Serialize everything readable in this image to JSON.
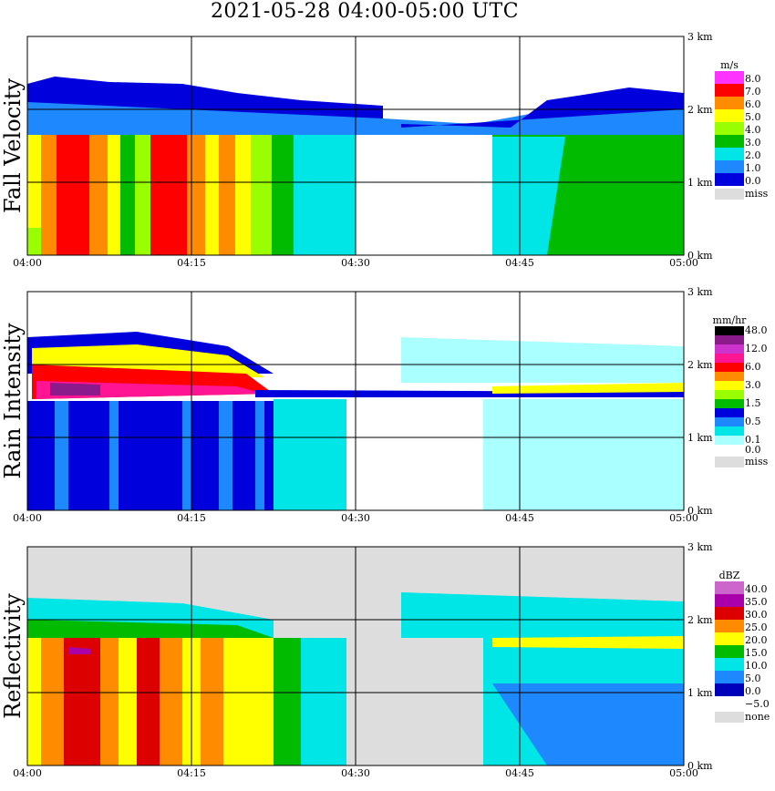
{
  "title": "2021-05-28   04:00-05:00 UTC",
  "chart_data": [
    {
      "type": "heatmap",
      "ylabel": "Fall Velocity",
      "x_ticks": [
        "04:00",
        "04:15",
        "04:30",
        "04:45",
        "05:00"
      ],
      "y_ticks": [
        "0 km",
        "1 km",
        "2 km",
        "3 km"
      ],
      "ylim": [
        0,
        3.1
      ],
      "legend": {
        "unit": "m/s",
        "entries": [
          {
            "label": "8.0",
            "color": "#ff33ff"
          },
          {
            "label": "7.0",
            "color": "#ff0000"
          },
          {
            "label": "6.0",
            "color": "#ff8c00"
          },
          {
            "label": "5.0",
            "color": "#ffff00"
          },
          {
            "label": "4.0",
            "color": "#99ff00"
          },
          {
            "label": "3.0",
            "color": "#00bb00"
          },
          {
            "label": "2.0",
            "color": "#00e5e5"
          },
          {
            "label": "1.0",
            "color": "#1e88ff"
          },
          {
            "label": "0.0",
            "color": "#0000dd"
          }
        ],
        "missing": {
          "label": "miss",
          "color": "#dddddd"
        }
      }
    },
    {
      "type": "heatmap",
      "ylabel": "Rain Intensity",
      "x_ticks": [
        "04:00",
        "04:15",
        "04:30",
        "04:45",
        "05:00"
      ],
      "y_ticks": [
        "0 km",
        "1 km",
        "2 km",
        "3 km"
      ],
      "ylim": [
        0,
        3.1
      ],
      "legend": {
        "unit": "mm/hr",
        "entries": [
          {
            "label": "48.0",
            "color": "#000000"
          },
          {
            "label": "",
            "color": "#8b1a8b"
          },
          {
            "label": "12.0",
            "color": "#cc33cc"
          },
          {
            "label": "",
            "color": "#ff1493"
          },
          {
            "label": "6.0",
            "color": "#ff0000"
          },
          {
            "label": "",
            "color": "#ff8c00"
          },
          {
            "label": "3.0",
            "color": "#ffff00"
          },
          {
            "label": "",
            "color": "#99ff00"
          },
          {
            "label": "1.5",
            "color": "#00bb00"
          },
          {
            "label": "",
            "color": "#0000dd"
          },
          {
            "label": "0.5",
            "color": "#1e88ff"
          },
          {
            "label": "",
            "color": "#00e5e5"
          },
          {
            "label": "0.1",
            "color": "#aaffff"
          }
        ],
        "zero_label": "0.0",
        "missing": {
          "label": "miss",
          "color": "#dddddd"
        }
      }
    },
    {
      "type": "heatmap",
      "ylabel": "Reflectivity",
      "x_ticks": [
        "04:00",
        "04:15",
        "04:30",
        "04:45",
        "05:00"
      ],
      "y_ticks": [
        "0 km",
        "1 km",
        "2 km",
        "3 km"
      ],
      "ylim": [
        0,
        3.1
      ],
      "legend": {
        "unit": "dBZ",
        "entries": [
          {
            "label": "40.0",
            "color": "#cc66cc"
          },
          {
            "label": "35.0",
            "color": "#aa00aa"
          },
          {
            "label": "30.0",
            "color": "#dd0000"
          },
          {
            "label": "25.0",
            "color": "#ff8c00"
          },
          {
            "label": "20.0",
            "color": "#ffff00"
          },
          {
            "label": "15.0",
            "color": "#00bb00"
          },
          {
            "label": "10.0",
            "color": "#00e5e5"
          },
          {
            "label": "5.0",
            "color": "#1e88ff"
          },
          {
            "label": "0.0",
            "color": "#0000bb"
          },
          {
            "label": "−5.0",
            "color": "#ffffff"
          }
        ],
        "missing": {
          "label": "none",
          "color": "#dddddd"
        }
      }
    }
  ]
}
